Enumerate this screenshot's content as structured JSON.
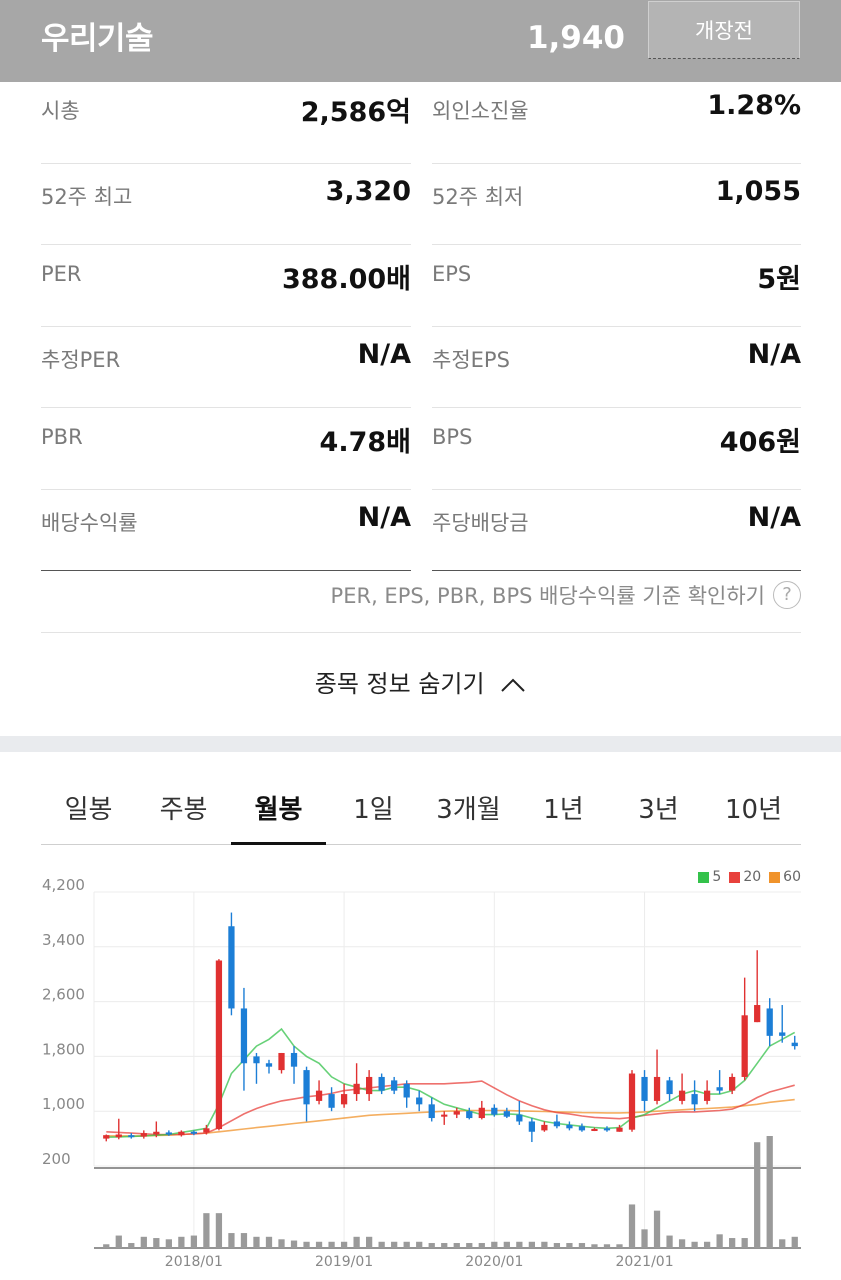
{
  "header": {
    "stock_name": "우리기술",
    "price": "1,940",
    "status": "개장전"
  },
  "info": [
    {
      "left": {
        "label": "시총",
        "value": "2,586억"
      },
      "right": {
        "label": "외인소진율",
        "value": "1.28%"
      }
    },
    {
      "left": {
        "label": "52주 최고",
        "value": "3,320"
      },
      "right": {
        "label": "52주 최저",
        "value": "1,055"
      }
    },
    {
      "left": {
        "label": "PER",
        "value": "388.00배"
      },
      "right": {
        "label": "EPS",
        "value": "5원"
      }
    },
    {
      "left": {
        "label": "추정PER",
        "value": "N/A"
      },
      "right": {
        "label": "추정EPS",
        "value": "N/A"
      }
    },
    {
      "left": {
        "label": "PBR",
        "value": "4.78배"
      },
      "right": {
        "label": "BPS",
        "value": "406원"
      }
    },
    {
      "left": {
        "label": "배당수익률",
        "value": "N/A"
      },
      "right": {
        "label": "주당배당금",
        "value": "N/A"
      }
    }
  ],
  "note": {
    "text": "PER, EPS, PBR, BPS 배당수익률 기준 확인하기",
    "icon": "?"
  },
  "toggle_label": "종목 정보 숨기기",
  "tabs": [
    "일봉",
    "주봉",
    "월봉",
    "1일",
    "3개월",
    "1년",
    "3년",
    "10년"
  ],
  "active_tab": "월봉",
  "colors": {
    "up": "#e03131",
    "down": "#1c7ed6",
    "ma5": "#34c24b",
    "ma20": "#e8413c",
    "ma60": "#f0932b",
    "volume": "#9a9a9a"
  },
  "chart_data": {
    "type": "candlestick",
    "legend": [
      {
        "name": "5",
        "color": "#34c24b"
      },
      {
        "name": "20",
        "color": "#e8413c"
      },
      {
        "name": "60",
        "color": "#f0932b"
      }
    ],
    "y_ticks": [
      "4,200",
      "3,400",
      "2,600",
      "1,800",
      "1,000",
      "200"
    ],
    "ylim": [
      200,
      4200
    ],
    "x_ticks": [
      "2018/01",
      "2019/01",
      "2020/01",
      "2021/01"
    ],
    "candles": [
      [
        600,
        650,
        560,
        660
      ],
      [
        620,
        660,
        590,
        890
      ],
      [
        650,
        640,
        600,
        680
      ],
      [
        630,
        680,
        600,
        720
      ],
      [
        660,
        700,
        620,
        850
      ],
      [
        690,
        660,
        640,
        720
      ],
      [
        650,
        700,
        630,
        720
      ],
      [
        700,
        680,
        650,
        720
      ],
      [
        690,
        750,
        660,
        800
      ],
      [
        740,
        3200,
        720,
        3220
      ],
      [
        3700,
        2500,
        2400,
        3900
      ],
      [
        2500,
        1700,
        1300,
        2800
      ],
      [
        1800,
        1700,
        1400,
        1850
      ],
      [
        1700,
        1650,
        1550,
        1750
      ],
      [
        1600,
        1850,
        1550,
        1850
      ],
      [
        1850,
        1650,
        1400,
        1950
      ],
      [
        1600,
        1100,
        850,
        1650
      ],
      [
        1150,
        1300,
        1100,
        1450
      ],
      [
        1250,
        1050,
        1000,
        1350
      ],
      [
        1100,
        1250,
        1050,
        1400
      ],
      [
        1250,
        1400,
        1150,
        1700
      ],
      [
        1250,
        1500,
        1150,
        1600
      ],
      [
        1500,
        1300,
        1250,
        1550
      ],
      [
        1450,
        1300,
        1250,
        1500
      ],
      [
        1400,
        1200,
        1050,
        1450
      ],
      [
        1200,
        1100,
        1000,
        1300
      ],
      [
        1100,
        900,
        850,
        1200
      ],
      [
        920,
        950,
        800,
        1000
      ],
      [
        950,
        1000,
        900,
        1050
      ],
      [
        1000,
        900,
        880,
        1050
      ],
      [
        900,
        1050,
        880,
        1150
      ],
      [
        1050,
        950,
        920,
        1100
      ],
      [
        1000,
        920,
        900,
        1050
      ],
      [
        950,
        850,
        800,
        1150
      ],
      [
        850,
        700,
        550,
        900
      ],
      [
        720,
        800,
        700,
        850
      ],
      [
        850,
        780,
        750,
        950
      ],
      [
        800,
        750,
        720,
        850
      ],
      [
        780,
        720,
        700,
        820
      ],
      [
        720,
        740,
        710,
        760
      ],
      [
        750,
        720,
        700,
        780
      ],
      [
        700,
        760,
        700,
        800
      ],
      [
        730,
        1550,
        700,
        1600
      ],
      [
        1500,
        1150,
        1000,
        1600
      ],
      [
        1150,
        1500,
        1100,
        1900
      ],
      [
        1450,
        1250,
        1150,
        1500
      ],
      [
        1150,
        1300,
        1100,
        1550
      ],
      [
        1250,
        1100,
        1000,
        1450
      ],
      [
        1150,
        1300,
        1100,
        1450
      ],
      [
        1350,
        1300,
        1250,
        1600
      ],
      [
        1300,
        1500,
        1250,
        1550
      ],
      [
        1500,
        2400,
        1450,
        2950
      ],
      [
        2300,
        2550,
        2300,
        3350
      ],
      [
        2500,
        2100,
        1950,
        2650
      ],
      [
        2150,
        2100,
        2000,
        2550
      ],
      [
        2000,
        1950,
        1900,
        2100
      ]
    ],
    "ma5": [
      620,
      625,
      630,
      640,
      650,
      660,
      690,
      720,
      750,
      1100,
      1550,
      1750,
      1950,
      2050,
      2200,
      1950,
      1800,
      1700,
      1500,
      1400,
      1350,
      1300,
      1300,
      1350,
      1350,
      1300,
      1200,
      1100,
      1050,
      1000,
      950,
      950,
      960,
      950,
      900,
      850,
      820,
      800,
      780,
      760,
      750,
      760,
      900,
      950,
      1050,
      1150,
      1250,
      1300,
      1250,
      1250,
      1300,
      1450,
      1700,
      1950,
      2050,
      2150
    ],
    "ma20": [
      700,
      690,
      680,
      670,
      660,
      660,
      660,
      670,
      680,
      760,
      860,
      960,
      1040,
      1100,
      1150,
      1180,
      1210,
      1230,
      1260,
      1300,
      1320,
      1340,
      1360,
      1380,
      1400,
      1400,
      1400,
      1400,
      1410,
      1420,
      1440,
      1340,
      1240,
      1150,
      1080,
      1020,
      980,
      960,
      930,
      910,
      900,
      890,
      910,
      940,
      960,
      980,
      990,
      990,
      1000,
      1010,
      1030,
      1100,
      1200,
      1280,
      1330,
      1380
    ],
    "ma60": [
      640,
      640,
      640,
      640,
      645,
      650,
      660,
      670,
      680,
      700,
      720,
      740,
      760,
      780,
      800,
      820,
      840,
      860,
      880,
      900,
      920,
      940,
      950,
      960,
      970,
      980,
      990,
      1000,
      1005,
      1010,
      1010,
      1010,
      1010,
      1005,
      1000,
      995,
      990,
      985,
      980,
      978,
      975,
      975,
      980,
      990,
      1000,
      1010,
      1020,
      1030,
      1040,
      1050,
      1060,
      1080,
      1100,
      1130,
      1150,
      1170
    ],
    "volume": [
      3,
      10,
      4,
      9,
      8,
      7,
      9,
      10,
      28,
      28,
      12,
      12,
      9,
      9,
      7,
      6,
      5,
      5,
      5,
      5,
      9,
      9,
      5,
      5,
      5,
      5,
      4,
      4,
      4,
      4,
      4,
      5,
      5,
      5,
      5,
      5,
      4,
      4,
      4,
      3,
      3,
      3,
      35,
      15,
      30,
      10,
      7,
      5,
      5,
      11,
      8,
      8,
      85,
      90,
      7,
      9
    ]
  }
}
